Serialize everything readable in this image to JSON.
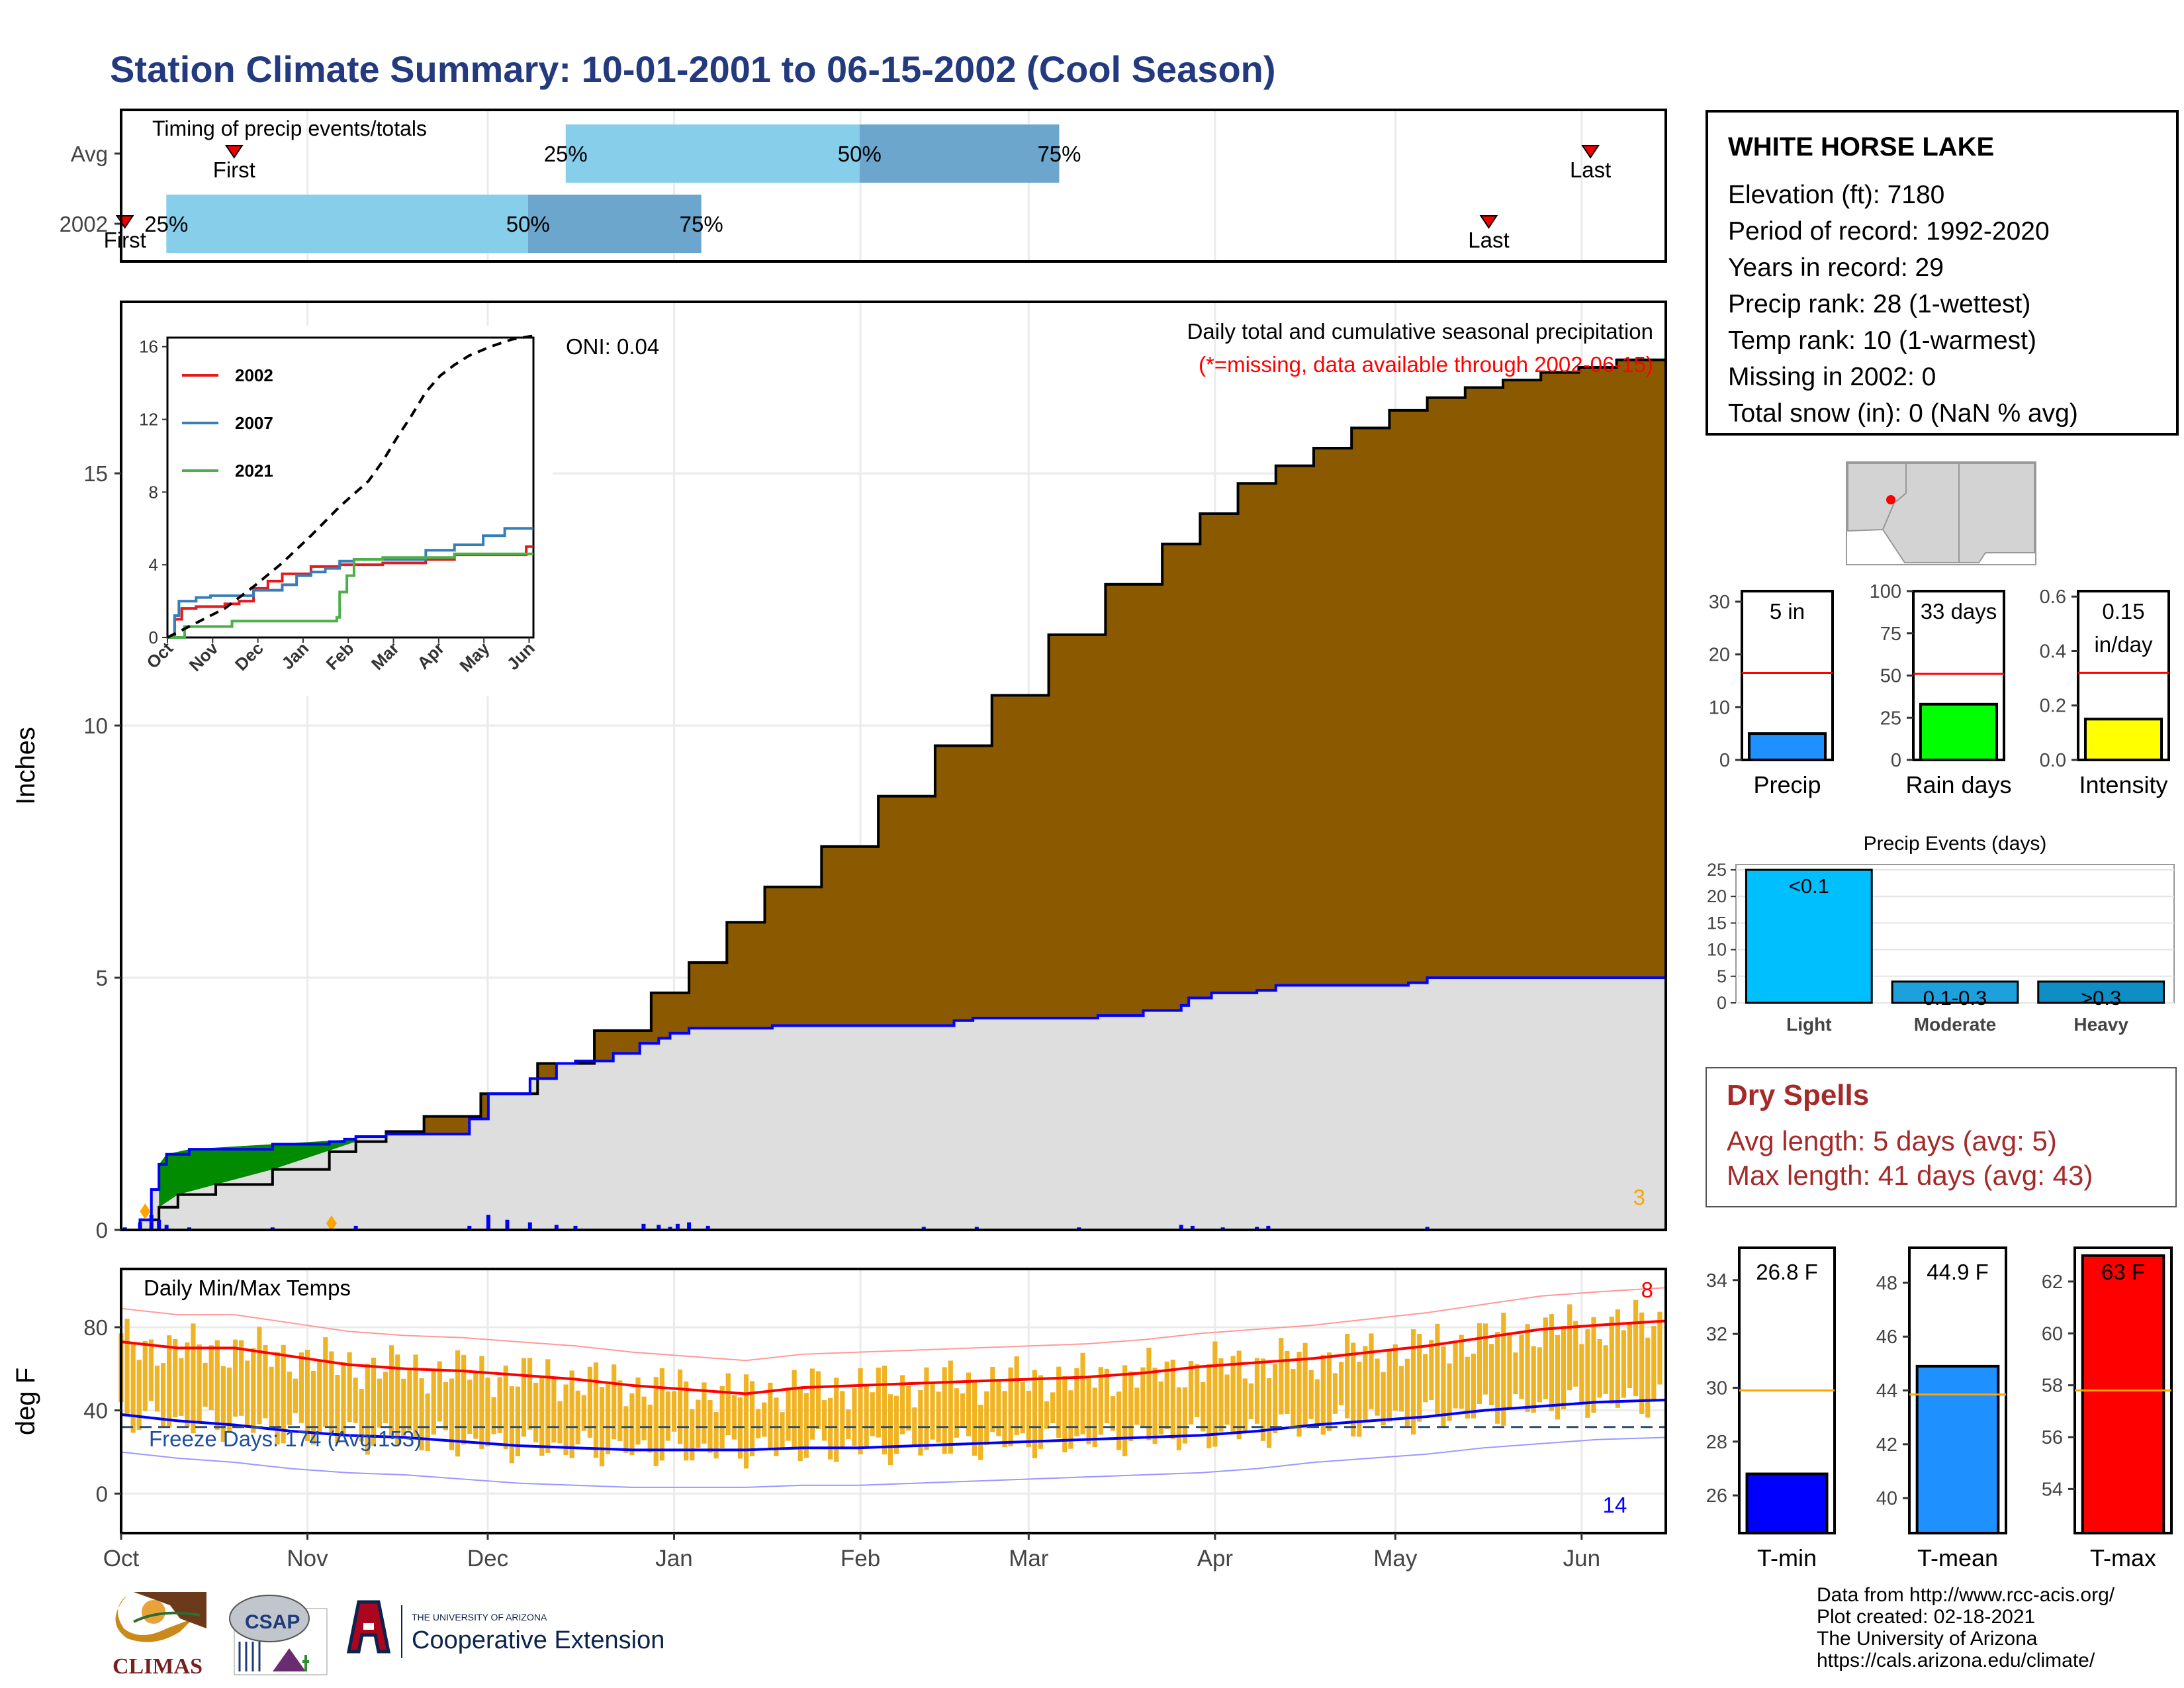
{
  "title": "Station Climate Summary: 10-01-2001 to 06-15-2002 (Cool Season)",
  "station": {
    "name": "WHITE HORSE LAKE",
    "lines": [
      "Elevation (ft): 7180",
      "Period of record: 1992-2020",
      "Years in record: 29",
      "Precip rank: 28 (1-wettest)",
      "Temp rank: 10 (1-warmest)",
      "Missing in 2002: 0",
      "Total snow (in): 0 (NaN % avg)"
    ]
  },
  "dry_spells": {
    "title": "Dry Spells",
    "avg_length": "Avg length: 5 days (avg: 5)",
    "max_length": "Max length: 41 days (avg: 43)"
  },
  "credits": [
    "Data from http://www.rcc-acis.org/",
    "Plot created: 02-18-2021",
    "The University of Arizona",
    "https://cals.arizona.edu/climate/"
  ],
  "logos": {
    "climas": "CLIMAS",
    "csap": "CSAP",
    "ua_line1": "THE UNIVERSITY OF ARIZONA",
    "ua_line2": "Cooperative Extension"
  },
  "colors": {
    "title": "#233a7f",
    "light_blue": "#87ceeb",
    "mid_blue": "#6ca6cd",
    "brown": "#8b5a00",
    "green": "#008b00",
    "gray_fill": "#dedede",
    "blue_line": "#0000ff",
    "orange_bars": "#f0b323",
    "red": "#ff0000"
  },
  "month_labels": [
    "Oct",
    "Nov",
    "Dec",
    "Jan",
    "Feb",
    "Mar",
    "Apr",
    "May",
    "Jun"
  ],
  "chart_data": [
    {
      "type": "bar",
      "id": "timing",
      "title": "Timing of precip events/totals",
      "categories": [
        "Avg",
        "2002"
      ],
      "rows": [
        {
          "label": "Avg",
          "first_day": 30,
          "p25_day": 118,
          "p50_day": 196,
          "p75_day": 249,
          "last_day": 390,
          "first_label": "First",
          "last_label": "Last"
        },
        {
          "label": "2002",
          "first_day": 1,
          "p25_day": 12,
          "p50_day": 108,
          "p75_day": 154,
          "last_day": 363,
          "first_label": "First",
          "last_label": "Last"
        }
      ],
      "pct_labels": [
        "25%",
        "50%",
        "75%"
      ]
    },
    {
      "type": "area",
      "id": "precip",
      "ylabel": "Inches",
      "ylim": [
        0,
        18.4
      ],
      "yticks": [
        0,
        5,
        10,
        15
      ],
      "annotation_title": "Daily total and cumulative seasonal precipitation",
      "annotation_missing": "(*=missing, data available through 2002-06-15)",
      "oni": "ONI: 0.04",
      "corner_count": "3",
      "avg_cumulative": {
        "x_day": [
          0,
          5,
          10,
          15,
          25,
          40,
          55,
          62,
          70,
          80,
          95,
          110,
          125,
          140,
          150,
          160,
          170,
          185,
          200,
          215,
          230,
          245,
          260,
          275,
          285,
          295,
          305,
          315,
          325,
          335,
          345,
          355,
          365,
          375,
          385,
          395,
          408
        ],
        "y": [
          0,
          0.2,
          0.45,
          0.7,
          0.9,
          1.2,
          1.55,
          1.75,
          1.95,
          2.25,
          2.7,
          3.3,
          3.95,
          4.7,
          5.3,
          6.1,
          6.8,
          7.6,
          8.6,
          9.6,
          10.6,
          11.8,
          12.8,
          13.6,
          14.2,
          14.8,
          15.15,
          15.5,
          15.9,
          16.25,
          16.5,
          16.7,
          16.85,
          17.0,
          17.1,
          17.25,
          17.35
        ]
      },
      "season_cumulative": {
        "x_day": [
          0,
          5,
          8,
          10,
          12,
          18,
          40,
          55,
          59,
          62,
          70,
          92,
          97,
          108,
          115,
          120,
          130,
          137,
          142,
          145,
          150,
          160,
          172,
          200,
          220,
          225,
          240,
          258,
          270,
          280,
          282,
          288,
          300,
          305,
          315,
          340,
          345,
          408
        ],
        "y": [
          0,
          0.2,
          0.8,
          1.3,
          1.5,
          1.6,
          1.7,
          1.75,
          1.8,
          1.85,
          1.9,
          2.2,
          2.7,
          3.0,
          3.3,
          3.35,
          3.5,
          3.7,
          3.8,
          3.9,
          4.0,
          4.0,
          4.05,
          4.05,
          4.15,
          4.2,
          4.2,
          4.25,
          4.35,
          4.45,
          4.6,
          4.7,
          4.75,
          4.85,
          4.85,
          4.9,
          5.0,
          5.0
        ]
      },
      "daily_bars": {
        "x_day": [
          1,
          5,
          8,
          10,
          12,
          18,
          40,
          62,
          92,
          97,
          102,
          108,
          115,
          120,
          138,
          142,
          145,
          147,
          150,
          155,
          212,
          226,
          253,
          280,
          283,
          291,
          300,
          303,
          345
        ],
        "y": [
          0.05,
          0.15,
          0.3,
          0.2,
          0.1,
          0.05,
          0.05,
          0.08,
          0.08,
          0.3,
          0.2,
          0.15,
          0.1,
          0.08,
          0.12,
          0.1,
          0.06,
          0.12,
          0.15,
          0.08,
          0.06,
          0.06,
          0.05,
          0.1,
          0.08,
          0.05,
          0.06,
          0.08,
          0.06
        ]
      }
    },
    {
      "type": "line",
      "id": "inset",
      "xlabels": [
        "Oct",
        "Nov",
        "Dec",
        "Jan",
        "Feb",
        "Mar",
        "Apr",
        "May",
        "Jun"
      ],
      "yticks": [
        0,
        4,
        8,
        12,
        16
      ],
      "ylim": [
        0,
        16.5
      ],
      "series": [
        {
          "name": "2002",
          "color": "#e41a1c",
          "x_day": [
            0,
            5,
            10,
            20,
            40,
            50,
            60,
            70,
            80,
            100,
            120,
            150,
            180,
            200,
            250,
            255
          ],
          "y": [
            0,
            1,
            1.6,
            1.7,
            1.85,
            2.0,
            2.7,
            3.1,
            3.5,
            3.9,
            4.0,
            4.1,
            4.3,
            4.55,
            5.0,
            5.0
          ]
        },
        {
          "name": "2007",
          "color": "#377eb8",
          "x_day": [
            0,
            5,
            8,
            20,
            30,
            60,
            80,
            90,
            100,
            110,
            120,
            130,
            150,
            180,
            200,
            220,
            235,
            255
          ],
          "y": [
            0,
            1.2,
            2.0,
            2.2,
            2.3,
            2.6,
            2.9,
            3.4,
            3.6,
            3.8,
            4.2,
            4.3,
            4.3,
            4.8,
            5.1,
            5.6,
            6.0,
            6.0
          ]
        },
        {
          "name": "2021",
          "color": "#4daf4a",
          "x_day": [
            0,
            10,
            12,
            40,
            45,
            60,
            80,
            95,
            118,
            120,
            125,
            130,
            150,
            200,
            255
          ],
          "y": [
            0,
            0,
            0.6,
            0.6,
            0.9,
            0.9,
            0.9,
            0.9,
            1.1,
            2.5,
            3.4,
            4.3,
            4.4,
            4.6,
            4.6
          ]
        }
      ],
      "avg_dashed": {
        "x_day": [
          0,
          20,
          40,
          60,
          80,
          100,
          120,
          140,
          150,
          160,
          170,
          180,
          190,
          200,
          210,
          225,
          240,
          255
        ],
        "y": [
          0,
          0.8,
          1.6,
          2.8,
          4.1,
          5.6,
          7.2,
          8.6,
          9.7,
          11.0,
          12.2,
          13.5,
          14.4,
          15.0,
          15.5,
          16.0,
          16.4,
          16.6
        ]
      }
    },
    {
      "type": "line",
      "id": "temps",
      "title": "Daily Min/Max Temps",
      "ylabel": "deg F",
      "ylim": [
        -19,
        108
      ],
      "yticks": [
        0,
        40,
        80
      ],
      "freeze_label": "Freeze Days: 174 (Avg:153)",
      "max_record_count": "8",
      "min_record_count": "14",
      "avg_max": {
        "x_day": [
          0,
          15,
          30,
          45,
          60,
          75,
          90,
          105,
          120,
          135,
          150,
          165,
          180,
          195,
          210,
          225,
          240,
          255,
          270,
          285,
          300,
          315,
          330,
          345,
          360,
          375,
          390,
          408
        ],
        "y": [
          73,
          70,
          70,
          66,
          62,
          60,
          59,
          57,
          55,
          52,
          50,
          48,
          51,
          52,
          53,
          54,
          55,
          56,
          58,
          61,
          63,
          65,
          68,
          71,
          75,
          79,
          81,
          83
        ]
      },
      "avg_min": {
        "x_day": [
          0,
          15,
          30,
          45,
          60,
          75,
          90,
          105,
          120,
          135,
          150,
          165,
          180,
          195,
          210,
          225,
          240,
          255,
          270,
          285,
          300,
          315,
          330,
          345,
          360,
          375,
          390,
          408
        ],
        "y": [
          38,
          35,
          33,
          30,
          28,
          27,
          25,
          23,
          22,
          21,
          21,
          21,
          22,
          22,
          23,
          24,
          25,
          26,
          27,
          28,
          30,
          33,
          35,
          37,
          40,
          42,
          44,
          45
        ]
      },
      "freeze_line": 32
    },
    {
      "type": "bar",
      "id": "precip-gauge",
      "categories": [
        "Precip"
      ],
      "values": [
        5
      ],
      "avg": 16.5,
      "ylim": [
        0,
        32
      ],
      "yticks": [
        0,
        10,
        20,
        30
      ],
      "label": "5 in",
      "color": "#1e90ff"
    },
    {
      "type": "bar",
      "id": "raindays-gauge",
      "categories": [
        "Rain days"
      ],
      "values": [
        33
      ],
      "avg": 51,
      "ylim": [
        0,
        100
      ],
      "yticks": [
        0,
        25,
        50,
        75,
        100
      ],
      "label": "33 days",
      "color": "#00ff00"
    },
    {
      "type": "bar",
      "id": "intensity-gauge",
      "categories": [
        "Intensity"
      ],
      "values": [
        0.15
      ],
      "avg": 0.32,
      "ylim": [
        0,
        0.62
      ],
      "yticks": [
        0.0,
        0.2,
        0.4,
        0.6
      ],
      "yticklabels": [
        "0.0",
        "0.2",
        "0.4",
        "0.6"
      ],
      "label": "0.15",
      "label2": "in/day",
      "color": "#ffff00"
    },
    {
      "type": "bar",
      "id": "events",
      "title": "Precip Events (days)",
      "categories": [
        "Light",
        "Moderate",
        "Heavy"
      ],
      "values": [
        25,
        4,
        4
      ],
      "bar_labels": [
        "<0.1",
        "0.1-0.3",
        ">0.3"
      ],
      "colors": [
        "#00bfff",
        "#1ea0dc",
        "#0e8ec4"
      ],
      "ylim": [
        0,
        26
      ],
      "yticks": [
        0,
        5,
        10,
        15,
        20,
        25
      ]
    },
    {
      "type": "bar",
      "id": "tmin-gauge",
      "categories": [
        "T-min"
      ],
      "values": [
        26.8
      ],
      "avg": 29.9,
      "ylim": [
        24.6,
        35.2
      ],
      "yticks": [
        26,
        28,
        30,
        32,
        34
      ],
      "label": "26.8 F",
      "color": "#0000ff"
    },
    {
      "type": "bar",
      "id": "tmean-gauge",
      "categories": [
        "T-mean"
      ],
      "values": [
        44.9
      ],
      "avg": 43.85,
      "ylim": [
        38.7,
        49.3
      ],
      "yticks": [
        40,
        42,
        44,
        46,
        48
      ],
      "label": "44.9 F",
      "color": "#1e90ff"
    },
    {
      "type": "bar",
      "id": "tmax-gauge",
      "categories": [
        "T-max"
      ],
      "values": [
        63
      ],
      "avg": 57.8,
      "ylim": [
        52.3,
        63.3
      ],
      "yticks": [
        54,
        56,
        58,
        60,
        62
      ],
      "label": "63 F",
      "color": "#ff0000"
    }
  ]
}
